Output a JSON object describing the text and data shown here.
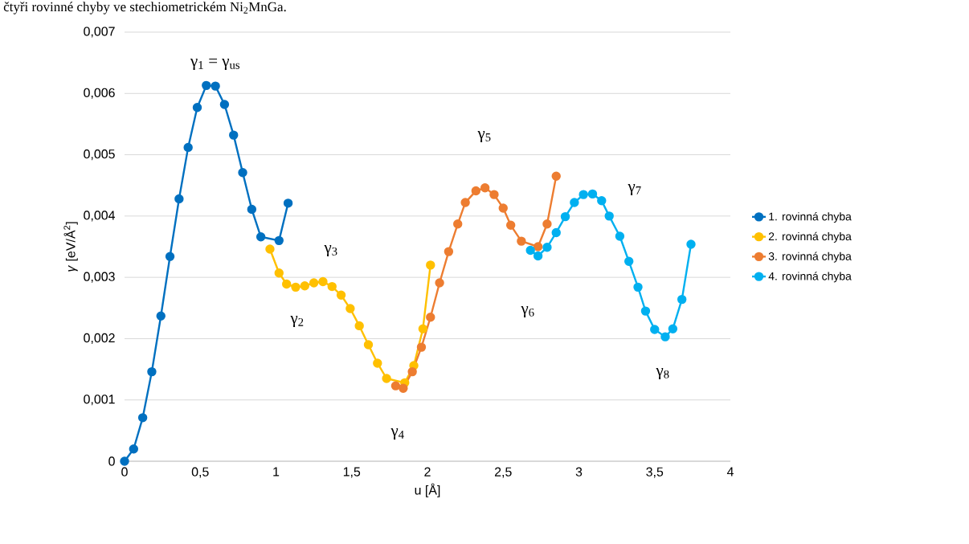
{
  "chart_data": {
    "type": "line",
    "xlabel": "u [Å]",
    "ylabel": "*γ* [eV/Å$^{2}$]",
    "xlim": [
      0,
      4
    ],
    "xticks": [
      0,
      {
        "value": 0.5,
        "label": "0,5"
      },
      1,
      {
        "value": 1.5,
        "label": "1,5"
      },
      2,
      {
        "value": 2.5,
        "label": "2,5"
      },
      3,
      {
        "value": 3.5,
        "label": "3,5"
      },
      4
    ],
    "ylim": [
      0,
      0.007
    ],
    "yticks": [
      0,
      {
        "value": 0.001,
        "label": "0,001"
      },
      {
        "value": 0.002,
        "label": "0,002"
      },
      {
        "value": 0.003,
        "label": "0,003"
      },
      {
        "value": 0.004,
        "label": "0,004"
      },
      {
        "value": 0.005,
        "label": "0,005"
      },
      {
        "value": 0.006,
        "label": "0,006"
      },
      {
        "value": 0.007,
        "label": "0,007"
      }
    ],
    "grid": "y",
    "legend": "right",
    "marker": "circle",
    "line_style": "solid",
    "series": [
      {
        "name": "1. rovinná chyba",
        "color": "#0070c0",
        "x": [
          0,
          0.06,
          0.12,
          0.18,
          0.24,
          0.3,
          0.36,
          0.42,
          0.48,
          0.54,
          0.6,
          0.66,
          0.72,
          0.78,
          0.84,
          0.9,
          0.96,
          1.02,
          1.08
        ],
        "values": [
          0,
          0.0002,
          0.00071,
          0.00146,
          0.00237,
          0.00334,
          0.00428,
          0.00512,
          0.00577,
          0.00613,
          0.00612,
          0.00582,
          0.00532,
          0.00471,
          0.00411,
          0.00366,
          null,
          0.0036,
          0.00421
        ]
      },
      {
        "name": "2. rovinná chyba",
        "color": "#ffc000",
        "x": [
          0.96,
          1.02,
          1.07,
          1.13,
          1.19,
          1.25,
          1.31,
          1.37,
          1.43,
          1.49,
          1.55,
          1.61,
          1.67,
          1.73,
          1.79,
          1.85,
          1.91,
          1.97,
          2.02
        ],
        "values": [
          0.00346,
          0.00307,
          0.00289,
          0.00284,
          0.00286,
          0.00291,
          0.00293,
          0.00285,
          0.00271,
          0.00249,
          0.00221,
          0.0019,
          0.0016,
          0.00135,
          null,
          0.00128,
          0.00156,
          0.00216,
          0.0032
        ]
      },
      {
        "name": "3. rovinná chyba",
        "color": "#ed7d31",
        "x": [
          1.79,
          1.84,
          1.9,
          1.96,
          2.02,
          2.08,
          2.14,
          2.2,
          2.25,
          2.32,
          2.38,
          2.44,
          2.5,
          2.55,
          2.62,
          2.67,
          2.73,
          2.79,
          2.85
        ],
        "values": [
          0.00123,
          0.00119,
          0.00146,
          0.00186,
          0.00235,
          0.00291,
          0.00342,
          0.00387,
          0.00422,
          0.00441,
          0.00446,
          0.00435,
          0.00413,
          0.00385,
          0.00359,
          null,
          0.0035,
          0.00387,
          0.00465
        ]
      },
      {
        "name": "4. rovinná chyba",
        "color": "#00b0f0",
        "x": [
          2.68,
          2.73,
          2.79,
          2.85,
          2.91,
          2.97,
          3.03,
          3.09,
          3.15,
          3.2,
          3.27,
          3.33,
          3.39,
          3.44,
          3.5,
          3.57,
          3.62,
          3.68,
          3.74
        ],
        "values": [
          0.00344,
          0.00335,
          0.00349,
          0.00373,
          0.00399,
          0.00422,
          0.00435,
          0.00436,
          0.00425,
          0.004,
          0.00367,
          0.00326,
          0.00284,
          0.00245,
          0.00215,
          0.00203,
          0.00216,
          0.00264,
          0.00354
        ]
      }
    ],
    "annotations": [
      "čtyři rovinné chyby ve stechiometrickém Ni$_{2}$MnGa.",
      "γ$_{1}$ = γ$_{us}$",
      "γ$_{2}$",
      "γ$_{3}$",
      "γ$_{4}$",
      "γ$_{5}$",
      "γ$_{6}$",
      "γ$_{7}$",
      "γ$_{8}$"
    ]
  }
}
